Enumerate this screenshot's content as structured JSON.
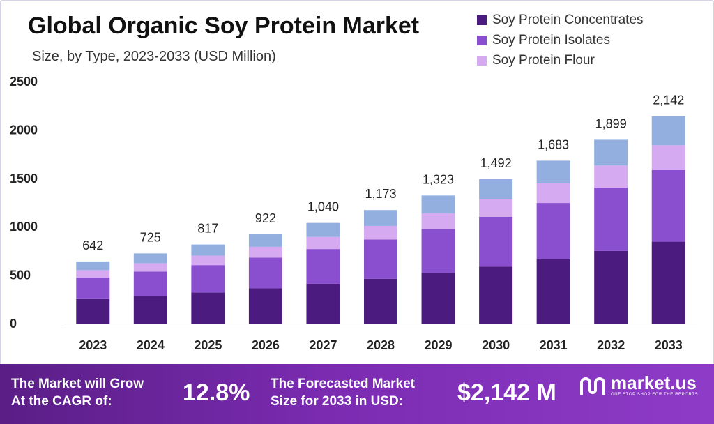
{
  "chart_data": {
    "type": "bar",
    "stacked": true,
    "title": "Global Organic Soy Protein Market",
    "subtitle": "Size, by Type, 2023-2033 (USD Million)",
    "categories": [
      "2023",
      "2024",
      "2025",
      "2026",
      "2027",
      "2028",
      "2029",
      "2030",
      "2031",
      "2032",
      "2033"
    ],
    "series": [
      {
        "name": "Soy Protein Concentrates",
        "values": [
          253,
          286,
          322,
          364,
          411,
          463,
          522,
          589,
          665,
          750,
          846
        ]
      },
      {
        "name": "Soy Protein Isolates",
        "values": [
          222,
          251,
          282,
          318,
          359,
          405,
          457,
          515,
          581,
          655,
          739
        ]
      },
      {
        "name": "Soy Protein Flour",
        "values": [
          77,
          87,
          98,
          111,
          125,
          141,
          159,
          179,
          202,
          228,
          257
        ]
      },
      {
        "name": "",
        "values": [
          90,
          101,
          115,
          129,
          145,
          164,
          185,
          209,
          235,
          266,
          300
        ]
      }
    ],
    "totals": [
      642,
      725,
      817,
      922,
      1040,
      1173,
      1323,
      1492,
      1683,
      1899,
      2142
    ],
    "total_labels": [
      "642",
      "725",
      "817",
      "922",
      "1,040",
      "1,173",
      "1,323",
      "1,492",
      "1,683",
      "1,899",
      "2,142"
    ],
    "yticks": [
      "0",
      "500",
      "1000",
      "1500",
      "2000",
      "2500"
    ],
    "ytick_values": [
      0,
      500,
      1000,
      1500,
      2000,
      2500
    ],
    "ylim": [
      0,
      2500
    ],
    "grid": false,
    "legend_position": "top-right",
    "colors": [
      "#4b1b7f",
      "#8a4fcf",
      "#d6aaf0",
      "#92afe0"
    ]
  },
  "footer": {
    "cagr_line1": "The Market will Grow",
    "cagr_line2": "At the CAGR of:",
    "cagr_value": "12.8%",
    "forecast_line1": "The Forecasted Market",
    "forecast_line2": "Size for 2033 in USD:",
    "forecast_value": "$2,142 M",
    "brand": "market.us",
    "tagline": "ONE STOP SHOP FOR THE REPORTS"
  }
}
